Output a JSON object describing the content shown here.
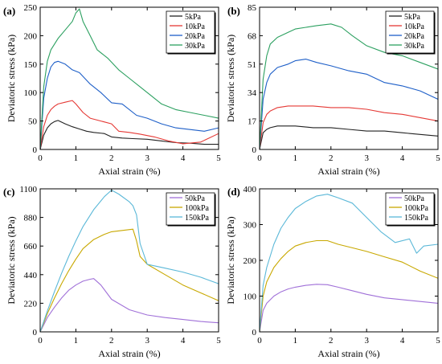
{
  "chart_data": [
    {
      "panel_label": "(a)",
      "type": "line",
      "xlabel": "Axial strain (%)",
      "ylabel": "Deviatoric stress (kPa)",
      "xlim": [
        0,
        5
      ],
      "ylim": [
        0,
        250
      ],
      "xticks": [
        "0",
        "1",
        "2",
        "3",
        "4",
        "5"
      ],
      "yticks": [
        "0",
        "50",
        "100",
        "150",
        "200",
        "250"
      ],
      "legend_position": "top-right",
      "series": [
        {
          "name": "5kPa",
          "color": "#222222",
          "x": [
            0,
            0.1,
            0.2,
            0.3,
            0.4,
            0.5,
            0.7,
            0.9,
            1.1,
            1.3,
            1.5,
            1.8,
            2.0,
            2.3,
            2.6,
            3.0,
            3.4,
            3.8,
            4.2,
            4.6,
            5.0
          ],
          "y": [
            0,
            25,
            38,
            45,
            49,
            51,
            45,
            40,
            36,
            32,
            30,
            28,
            22,
            20,
            19,
            18,
            15,
            12,
            11,
            9,
            9
          ]
        },
        {
          "name": "10kPa",
          "color": "#e53935",
          "x": [
            0,
            0.1,
            0.2,
            0.3,
            0.4,
            0.5,
            0.7,
            0.9,
            1.0,
            1.2,
            1.4,
            1.7,
            2.0,
            2.2,
            2.5,
            2.8,
            3.2,
            3.6,
            4.0,
            4.5,
            5.0
          ],
          "y": [
            0,
            40,
            60,
            70,
            76,
            80,
            83,
            86,
            80,
            65,
            55,
            50,
            45,
            32,
            30,
            27,
            22,
            15,
            10,
            13,
            28
          ]
        },
        {
          "name": "20kPa",
          "color": "#1e5fc8",
          "x": [
            0,
            0.1,
            0.2,
            0.3,
            0.4,
            0.5,
            0.7,
            0.9,
            1.1,
            1.4,
            1.7,
            2.0,
            2.3,
            2.7,
            3.0,
            3.4,
            3.8,
            4.2,
            4.6,
            5.0
          ],
          "y": [
            0,
            90,
            125,
            145,
            153,
            155,
            150,
            140,
            135,
            115,
            100,
            82,
            80,
            60,
            55,
            45,
            38,
            35,
            32,
            38
          ]
        },
        {
          "name": "30kPa",
          "color": "#2ca060",
          "x": [
            0,
            0.1,
            0.2,
            0.3,
            0.5,
            0.7,
            0.9,
            1.0,
            1.1,
            1.2,
            1.4,
            1.6,
            1.9,
            2.2,
            2.5,
            2.8,
            3.1,
            3.4,
            3.8,
            4.2,
            4.6,
            5.0
          ],
          "y": [
            0,
            110,
            155,
            175,
            195,
            210,
            225,
            240,
            247,
            225,
            200,
            175,
            160,
            140,
            125,
            110,
            95,
            80,
            70,
            65,
            60,
            55
          ]
        }
      ]
    },
    {
      "panel_label": "(b)",
      "type": "line",
      "xlabel": "Axial strain (%)",
      "ylabel": "Deviatoric stress (kPa)",
      "xlim": [
        0,
        5
      ],
      "ylim": [
        0,
        85
      ],
      "xticks": [
        "0",
        "1",
        "2",
        "3",
        "4",
        "5"
      ],
      "yticks": [
        "0",
        "17",
        "34",
        "51",
        "68",
        "85"
      ],
      "legend_position": "top-right",
      "series": [
        {
          "name": "5kPa",
          "color": "#222222",
          "x": [
            0,
            0.1,
            0.2,
            0.3,
            0.5,
            0.8,
            1.0,
            1.5,
            2.0,
            2.5,
            3.0,
            3.5,
            4.0,
            4.5,
            5.0
          ],
          "y": [
            0,
            10,
            12,
            13,
            14,
            14,
            14,
            13,
            13,
            12,
            11,
            11,
            10,
            9,
            8
          ]
        },
        {
          "name": "10kPa",
          "color": "#e53935",
          "x": [
            0,
            0.1,
            0.2,
            0.3,
            0.5,
            0.8,
            1.0,
            1.5,
            2.0,
            2.5,
            3.0,
            3.5,
            4.0,
            4.5,
            5.0
          ],
          "y": [
            0,
            16,
            21,
            23,
            25,
            26,
            26,
            26,
            25,
            25,
            24,
            22,
            21,
            19,
            17
          ]
        },
        {
          "name": "20kPa",
          "color": "#1e5fc8",
          "x": [
            0,
            0.1,
            0.2,
            0.3,
            0.5,
            0.8,
            1.0,
            1.3,
            1.6,
            2.0,
            2.5,
            3.0,
            3.5,
            4.0,
            4.5,
            5.0
          ],
          "y": [
            0,
            30,
            40,
            45,
            49,
            51,
            53,
            54,
            52,
            50,
            47,
            45,
            40,
            38,
            35,
            30
          ]
        },
        {
          "name": "30kPa",
          "color": "#2ca060",
          "x": [
            0,
            0.1,
            0.2,
            0.3,
            0.5,
            0.8,
            1.0,
            1.3,
            1.6,
            2.0,
            2.3,
            2.6,
            3.0,
            3.5,
            4.0,
            4.5,
            5.0
          ],
          "y": [
            0,
            42,
            56,
            63,
            67,
            70,
            72,
            73,
            74,
            75,
            73,
            68,
            62,
            58,
            56,
            52,
            48
          ]
        }
      ]
    },
    {
      "panel_label": "(c)",
      "type": "line",
      "xlabel": "Axial strain (%)",
      "ylabel": "Deviatoric stress (kPa)",
      "xlim": [
        0,
        5
      ],
      "ylim": [
        0,
        1100
      ],
      "xticks": [
        "0",
        "1",
        "2",
        "3",
        "4",
        "5"
      ],
      "yticks": [
        "0",
        "220",
        "440",
        "660",
        "880",
        "1100"
      ],
      "legend_position": "top-right",
      "series": [
        {
          "name": "50kPa",
          "color": "#a070d8",
          "x": [
            0,
            0.2,
            0.4,
            0.6,
            0.8,
            1.0,
            1.2,
            1.4,
            1.5,
            1.7,
            2.0,
            2.5,
            3.0,
            3.5,
            4.0,
            4.5,
            5.0
          ],
          "y": [
            0,
            110,
            190,
            260,
            320,
            360,
            390,
            405,
            410,
            360,
            250,
            170,
            130,
            110,
            95,
            80,
            70
          ]
        },
        {
          "name": "100kPa",
          "color": "#c8a800",
          "x": [
            0,
            0.2,
            0.4,
            0.6,
            0.8,
            1.0,
            1.2,
            1.5,
            1.8,
            2.0,
            2.3,
            2.6,
            2.7,
            2.8,
            3.0,
            3.5,
            4.0,
            4.5,
            5.0
          ],
          "y": [
            0,
            140,
            260,
            370,
            470,
            560,
            640,
            710,
            750,
            770,
            780,
            790,
            700,
            580,
            520,
            440,
            360,
            300,
            240
          ]
        },
        {
          "name": "150kPa",
          "color": "#5bb8d8",
          "x": [
            0,
            0.2,
            0.4,
            0.6,
            0.8,
            1.0,
            1.2,
            1.5,
            1.8,
            2.0,
            2.2,
            2.5,
            2.6,
            2.7,
            2.8,
            3.0,
            3.5,
            4.0,
            4.5,
            5.0
          ],
          "y": [
            0,
            160,
            310,
            450,
            580,
            700,
            810,
            940,
            1040,
            1090,
            1060,
            1000,
            970,
            900,
            680,
            520,
            490,
            460,
            420,
            370
          ]
        }
      ]
    },
    {
      "panel_label": "(d)",
      "type": "line",
      "xlabel": "Axial strain (%)",
      "ylabel": "Deviatoric stress (kPa)",
      "xlim": [
        0,
        5
      ],
      "ylim": [
        0,
        400
      ],
      "xticks": [
        "0",
        "1",
        "2",
        "3",
        "4",
        "5"
      ],
      "yticks": [
        "0",
        "100",
        "200",
        "300",
        "400"
      ],
      "legend_position": "top-right",
      "series": [
        {
          "name": "50kPa",
          "color": "#a070d8",
          "x": [
            0,
            0.1,
            0.2,
            0.4,
            0.6,
            0.8,
            1.0,
            1.3,
            1.6,
            1.9,
            2.2,
            2.6,
            3.0,
            3.5,
            4.0,
            4.5,
            5.0
          ],
          "y": [
            0,
            60,
            80,
            100,
            112,
            120,
            125,
            130,
            133,
            132,
            125,
            115,
            105,
            95,
            90,
            85,
            80
          ]
        },
        {
          "name": "100kPa",
          "color": "#c8a800",
          "x": [
            0,
            0.1,
            0.2,
            0.4,
            0.6,
            0.8,
            1.0,
            1.3,
            1.6,
            1.9,
            2.2,
            2.6,
            3.0,
            3.5,
            4.0,
            4.5,
            5.0
          ],
          "y": [
            0,
            100,
            140,
            180,
            205,
            225,
            240,
            250,
            255,
            255,
            245,
            235,
            225,
            210,
            195,
            170,
            150
          ]
        },
        {
          "name": "150kPa",
          "color": "#5bb8d8",
          "x": [
            0,
            0.1,
            0.2,
            0.4,
            0.6,
            0.8,
            1.0,
            1.3,
            1.6,
            1.9,
            2.2,
            2.6,
            3.0,
            3.4,
            3.8,
            4.2,
            4.4,
            4.6,
            5.0
          ],
          "y": [
            0,
            130,
            180,
            245,
            290,
            320,
            345,
            365,
            380,
            385,
            375,
            360,
            320,
            280,
            250,
            260,
            220,
            240,
            245
          ]
        }
      ]
    }
  ]
}
